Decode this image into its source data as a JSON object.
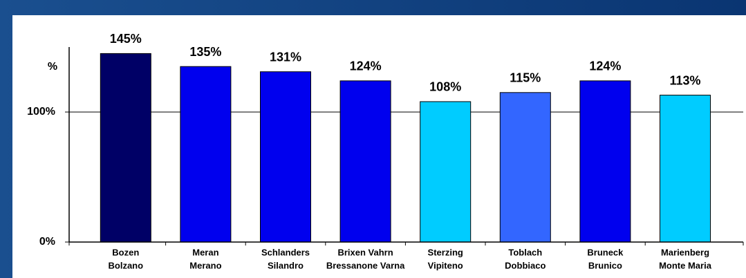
{
  "chart_data": {
    "type": "bar",
    "y_label": "%",
    "categories": [
      [
        "Bozen",
        "Bolzano"
      ],
      [
        "Meran",
        "Merano"
      ],
      [
        "Schlanders",
        "Silandro"
      ],
      [
        "Brixen Vahrn",
        "Bressanone Varna"
      ],
      [
        "Sterzing",
        "Vipiteno"
      ],
      [
        "Toblach",
        "Dobbiaco"
      ],
      [
        "Bruneck",
        "Brunico"
      ],
      [
        "Marienberg",
        "Monte Maria"
      ]
    ],
    "values": [
      145,
      135,
      131,
      124,
      108,
      115,
      124,
      113
    ],
    "value_labels": [
      "145%",
      "135%",
      "131%",
      "124%",
      "108%",
      "115%",
      "124%",
      "113%"
    ],
    "colors": [
      "#000066",
      "#0000ee",
      "#0000ee",
      "#0000ee",
      "#00ccff",
      "#3366ff",
      "#0000ee",
      "#00ccff"
    ],
    "ylim": [
      0,
      150
    ],
    "yticks": [
      {
        "value": 0,
        "label": "0%"
      },
      {
        "value": 100,
        "label": "100%"
      }
    ],
    "grid": true
  }
}
